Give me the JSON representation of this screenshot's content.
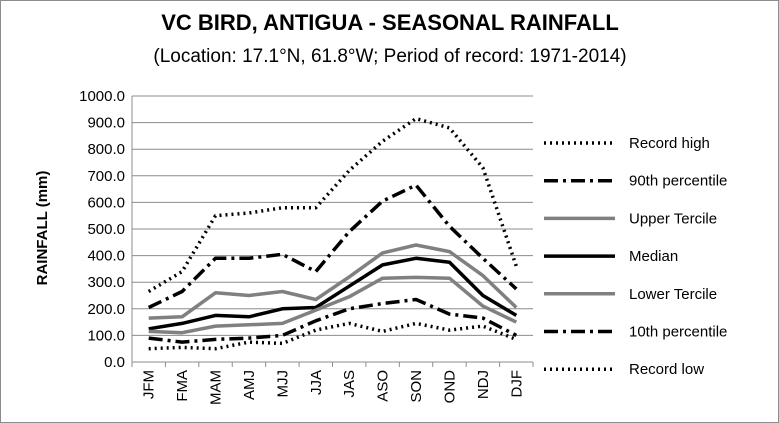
{
  "chart_data": {
    "type": "line",
    "title": "VC BIRD, ANTIGUA - SEASONAL RAINFALL",
    "subtitle": "(Location: 17.1°N, 61.8°W; Period of record: 1971-2014)",
    "xlabel": "",
    "ylabel": "RAINFALL (mm)",
    "ylim": [
      0,
      1000
    ],
    "yticks": [
      "0.0",
      "100.0",
      "200.0",
      "300.0",
      "400.0",
      "500.0",
      "600.0",
      "700.0",
      "800.0",
      "900.0",
      "1000.0"
    ],
    "categories": [
      "JFM",
      "FMA",
      "MAM",
      "AMJ",
      "MJJ",
      "JJA",
      "JAS",
      "ASO",
      "SON",
      "OND",
      "NDJ",
      "DJF"
    ],
    "grid": true,
    "legend_position": "right",
    "series": [
      {
        "name": "Record high",
        "values": [
          265,
          340,
          550,
          560,
          580,
          580,
          720,
          830,
          915,
          880,
          730,
          360
        ],
        "color": "#000000",
        "style": "dotted"
      },
      {
        "name": "90th percentile",
        "values": [
          205,
          265,
          390,
          390,
          405,
          340,
          490,
          605,
          665,
          510,
          390,
          275
        ],
        "color": "#000000",
        "style": "dashdot"
      },
      {
        "name": "Upper Tercile",
        "values": [
          165,
          170,
          260,
          250,
          265,
          235,
          320,
          410,
          440,
          415,
          325,
          205
        ],
        "color": "#808080",
        "style": "solid"
      },
      {
        "name": "Median",
        "values": [
          125,
          145,
          175,
          170,
          200,
          205,
          285,
          365,
          390,
          375,
          250,
          175
        ],
        "color": "#000000",
        "style": "solid"
      },
      {
        "name": "Lower Tercile",
        "values": [
          115,
          110,
          135,
          140,
          145,
          195,
          245,
          315,
          318,
          315,
          210,
          150
        ],
        "color": "#808080",
        "style": "solid"
      },
      {
        "name": "10th percentile",
        "values": [
          90,
          75,
          85,
          90,
          100,
          155,
          200,
          220,
          235,
          180,
          165,
          100
        ],
        "color": "#000000",
        "style": "dashdot"
      },
      {
        "name": "Record low",
        "values": [
          50,
          55,
          50,
          75,
          70,
          120,
          145,
          115,
          145,
          120,
          135,
          85
        ],
        "color": "#000000",
        "style": "dotted"
      }
    ]
  }
}
